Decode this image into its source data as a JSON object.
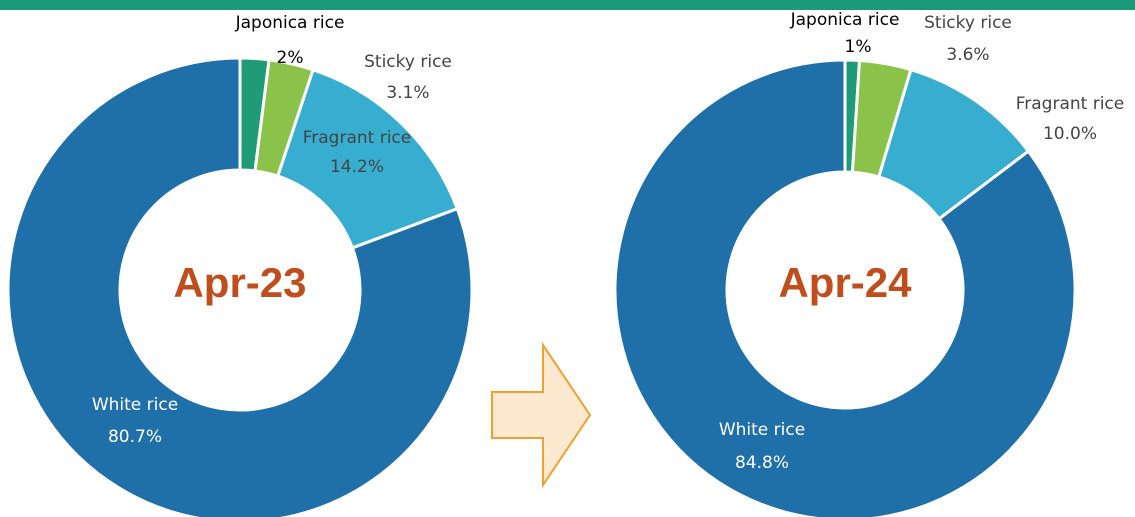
{
  "chart_data": [
    {
      "type": "donut",
      "title": "Apr-23",
      "categories": [
        "Japonica rice",
        "Sticky rice",
        "Fragrant rice",
        "White rice"
      ],
      "values": [
        2,
        3.1,
        14.2,
        80.7
      ],
      "value_labels": [
        "2%",
        "3.1%",
        "14.2%",
        "80.7%"
      ],
      "colors": [
        "#1f9b78",
        "#8bc34a",
        "#37aed0",
        "#1f6fa8"
      ]
    },
    {
      "type": "donut",
      "title": "Apr-24",
      "categories": [
        "Japonica rice",
        "Sticky rice",
        "Fragrant rice",
        "White rice"
      ],
      "values": [
        1,
        3.6,
        10.0,
        84.8
      ],
      "value_labels": [
        "1%",
        "3.6%",
        "10.0%",
        "84.8%"
      ],
      "colors": [
        "#1f9b78",
        "#8bc34a",
        "#37aed0",
        "#1f6fa8"
      ]
    }
  ]
}
